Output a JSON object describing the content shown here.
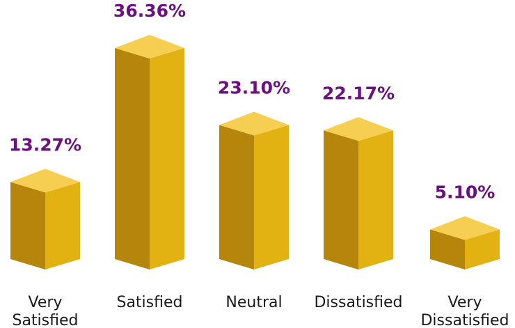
{
  "chart_data": {
    "type": "bar",
    "title": "",
    "xlabel": "",
    "ylabel": "",
    "categories": [
      "Very Satisfied",
      "Satisfied",
      "Neutral",
      "Dissatisfied",
      "Very Dissatisfied"
    ],
    "category_label_lines": [
      [
        "Very",
        "Satisfied"
      ],
      [
        "Satisfied"
      ],
      [
        "Neutral"
      ],
      [
        "Dissatisfied"
      ],
      [
        "Very",
        "Dissatisfied"
      ]
    ],
    "values": [
      13.27,
      36.36,
      23.1,
      22.17,
      5.1
    ],
    "value_labels": [
      "13.27%",
      "36.36%",
      "23.10%",
      "22.17%",
      "5.10%"
    ],
    "ylim": [
      0,
      36.36
    ],
    "grid": false,
    "legend": "none",
    "colors": {
      "bar_front": "#e2b112",
      "bar_side": "#b5860b",
      "bar_top": "#f6cf52",
      "value_label": "#6c0f82",
      "category_label": "#1a1a1a"
    }
  }
}
